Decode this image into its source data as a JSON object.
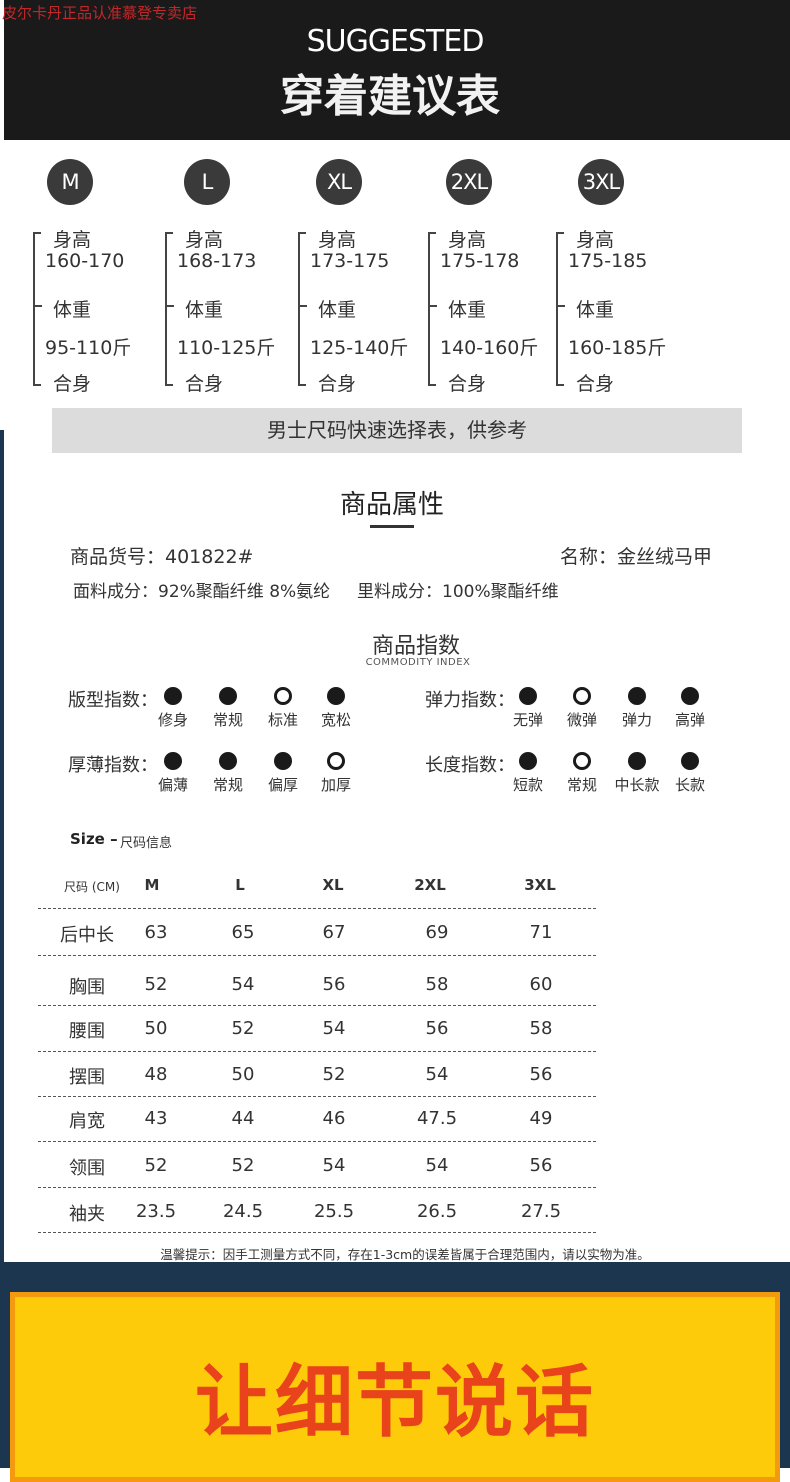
{
  "watermark": "皮尔卡丹正品认准慕登专卖店",
  "header": {
    "title_en": "SUGGESTED",
    "title_cn": "穿着建议表"
  },
  "sizes": [
    {
      "size": "M",
      "height_label": "身高",
      "height": "160-170",
      "weight_label": "体重",
      "weight": "95-110斤",
      "fit": "合身"
    },
    {
      "size": "L",
      "height_label": "身高",
      "height": "168-173",
      "weight_label": "体重",
      "weight": "110-125斤",
      "fit": "合身"
    },
    {
      "size": "XL",
      "height_label": "身高",
      "height": "173-175",
      "weight_label": "体重",
      "weight": "125-140斤",
      "fit": "合身"
    },
    {
      "size": "2XL",
      "height_label": "身高",
      "height": "175-178",
      "weight_label": "体重",
      "weight": "140-160斤",
      "fit": "合身"
    },
    {
      "size": "3XL",
      "height_label": "身高",
      "height": "175-185",
      "weight_label": "体重",
      "weight": "160-185斤",
      "fit": "合身"
    }
  ],
  "quick_select": "男士尺码快速选择表，供参考",
  "attributes": {
    "title": "商品属性",
    "sku": "商品货号：401822#",
    "name": "名称：金丝绒马甲",
    "fabric": "面料成分：92%聚酯纤维 8%氨纶",
    "lining": "里料成分：100%聚酯纤维"
  },
  "index": {
    "title": "商品指数",
    "subtitle": "COMMODITY INDEX",
    "groups": [
      {
        "label": "版型指数：",
        "options": [
          "修身",
          "常规",
          "标准",
          "宽松"
        ],
        "selected": 2
      },
      {
        "label": "弹力指数：",
        "options": [
          "无弹",
          "微弹",
          "弹力",
          "高弹"
        ],
        "selected": 1
      },
      {
        "label": "厚薄指数：",
        "options": [
          "偏薄",
          "常规",
          "偏厚",
          "加厚"
        ],
        "selected": 3
      },
      {
        "label": "长度指数：",
        "options": [
          "短款",
          "常规",
          "中长款",
          "长款"
        ],
        "selected": 1
      }
    ]
  },
  "size_table": {
    "title_bold": "Size –",
    "title": "尺码信息",
    "unit": "尺码 (CM)",
    "columns": [
      "M",
      "L",
      "XL",
      "2XL",
      "3XL"
    ],
    "rows": [
      {
        "label": "后中长",
        "values": [
          "63",
          "65",
          "67",
          "69",
          "71"
        ]
      },
      {
        "label": "胸围",
        "values": [
          "52",
          "54",
          "56",
          "58",
          "60"
        ]
      },
      {
        "label": "腰围",
        "values": [
          "50",
          "52",
          "54",
          "56",
          "58"
        ]
      },
      {
        "label": "摆围",
        "values": [
          "48",
          "50",
          "52",
          "54",
          "56"
        ]
      },
      {
        "label": "肩宽",
        "values": [
          "43",
          "44",
          "46",
          "47.5",
          "49"
        ]
      },
      {
        "label": "领围",
        "values": [
          "52",
          "52",
          "54",
          "54",
          "56"
        ]
      },
      {
        "label": "袖夹",
        "values": [
          "23.5",
          "24.5",
          "25.5",
          "26.5",
          "27.5"
        ]
      }
    ],
    "note": "温馨提示：因手工测量方式不同，存在1-3cm的误差皆属于合理范围内，请以实物为准。"
  },
  "banner": {
    "text": "让细节说话"
  },
  "colors": {
    "header_bg": "#1b1a1a",
    "navy": "#1c3650",
    "yellow": "#fecb0a",
    "orange": "#f39a0f",
    "red_text": "#e8431a"
  }
}
